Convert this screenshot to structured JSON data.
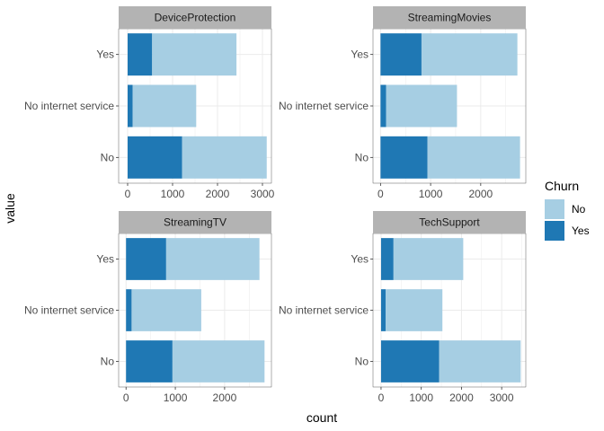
{
  "chart_data": {
    "type": "bar",
    "orientation": "horizontal",
    "stacked": true,
    "xlabel": "count",
    "ylabel": "value",
    "legend": {
      "title": "Churn",
      "position": "right",
      "entries": [
        {
          "label": "No",
          "color": "#a6cee3"
        },
        {
          "label": "Yes",
          "color": "#1f78b4"
        }
      ]
    },
    "grid": true,
    "panels": [
      {
        "title": "DeviceProtection",
        "categories": [
          "No",
          "No internet service",
          "Yes"
        ],
        "series": [
          {
            "name": "Yes",
            "values": [
              1211,
              113,
              545
            ]
          },
          {
            "name": "No",
            "values": [
              1884,
              1413,
              1877
            ]
          }
        ],
        "xlim": [
          -200,
          3200
        ],
        "xticks": [
          0,
          1000,
          2000,
          3000
        ]
      },
      {
        "title": "StreamingMovies",
        "categories": [
          "No",
          "No internet service",
          "Yes"
        ],
        "series": [
          {
            "name": "Yes",
            "values": [
              938,
              113,
              818
            ]
          },
          {
            "name": "No",
            "values": [
              1847,
              1413,
              1914
            ]
          }
        ],
        "xlim": [
          -150,
          2900
        ],
        "xticks": [
          0,
          1000,
          2000
        ]
      },
      {
        "title": "StreamingTV",
        "categories": [
          "No",
          "No internet service",
          "Yes"
        ],
        "series": [
          {
            "name": "Yes",
            "values": [
              942,
              113,
              814
            ]
          },
          {
            "name": "No",
            "values": [
              1868,
              1413,
              1893
            ]
          }
        ],
        "xlim": [
          -150,
          2950
        ],
        "xticks": [
          0,
          1000,
          2000
        ]
      },
      {
        "title": "TechSupport",
        "categories": [
          "No",
          "No internet service",
          "Yes"
        ],
        "series": [
          {
            "name": "Yes",
            "values": [
              1446,
              113,
              310
            ]
          },
          {
            "name": "No",
            "values": [
              2027,
              1413,
              1734
            ]
          }
        ],
        "xlim": [
          -200,
          3600
        ],
        "xticks": [
          0,
          1000,
          2000,
          3000
        ]
      }
    ]
  }
}
